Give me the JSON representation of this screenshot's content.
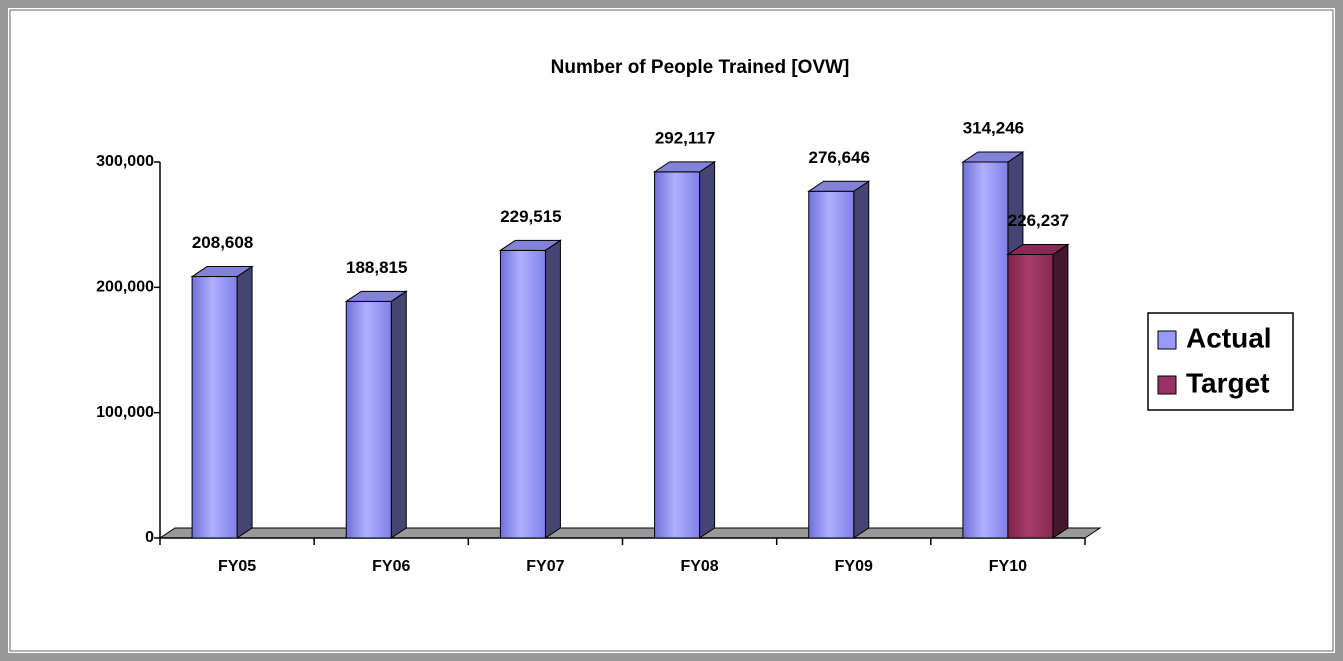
{
  "chart_data": {
    "type": "bar3d",
    "title": "Number of People Trained [OVW]",
    "categories": [
      "FY05",
      "FY06",
      "FY07",
      "FY08",
      "FY09",
      "FY10"
    ],
    "series": [
      {
        "name": "Actual",
        "color": "#9999ff",
        "values": [
          208608,
          188815,
          229515,
          292117,
          276646,
          314246
        ],
        "value_labels": [
          "208,608",
          "188,815",
          "229,515",
          "292,117",
          "276,646",
          "314,246"
        ]
      },
      {
        "name": "Target",
        "color": "#993366",
        "values": [
          null,
          null,
          null,
          null,
          null,
          226237
        ],
        "value_labels": [
          null,
          null,
          null,
          null,
          null,
          "226,237"
        ]
      }
    ],
    "ylim": [
      0,
      300000
    ],
    "yticks": [
      0,
      {
        "value": 100000,
        "label": "100,000"
      },
      {
        "value": 200000,
        "label": "200,000"
      },
      {
        "value": 300000,
        "label": "300,000"
      }
    ],
    "legend": "right"
  }
}
